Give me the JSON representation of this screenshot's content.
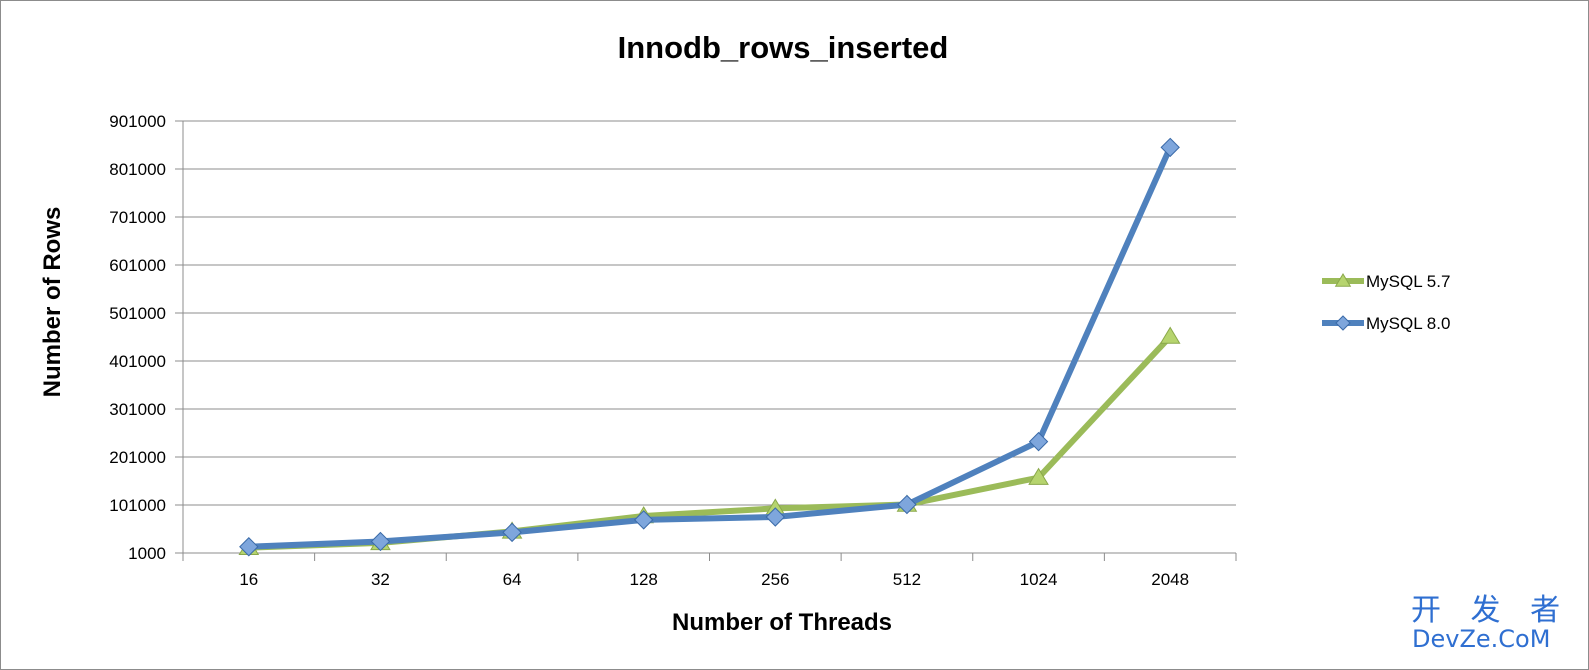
{
  "chart_data": {
    "type": "line",
    "title": "Innodb_rows_inserted",
    "xlabel": "Number of Threads",
    "ylabel": "Number of Rows",
    "categories": [
      "16",
      "32",
      "64",
      "128",
      "256",
      "512",
      "1024",
      "2048"
    ],
    "yticks": [
      "1000",
      "101000",
      "201000",
      "301000",
      "401000",
      "501000",
      "601000",
      "701000",
      "801000",
      "901000"
    ],
    "ylim": [
      1000,
      901000
    ],
    "grid": true,
    "legend_position": "right",
    "series": [
      {
        "name": "MySQL 5.7",
        "color": "#9bbb59",
        "marker": "triangle",
        "values": [
          12000,
          22000,
          46000,
          78000,
          94000,
          102000,
          158000,
          452000
        ]
      },
      {
        "name": "MySQL 8.0",
        "color": "#4f81bd",
        "marker": "diamond",
        "values": [
          14000,
          25000,
          44000,
          70000,
          76000,
          102000,
          233000,
          846000
        ]
      }
    ]
  },
  "watermark": {
    "line1": "开 发 者",
    "line2": "DevZe.CoM"
  }
}
